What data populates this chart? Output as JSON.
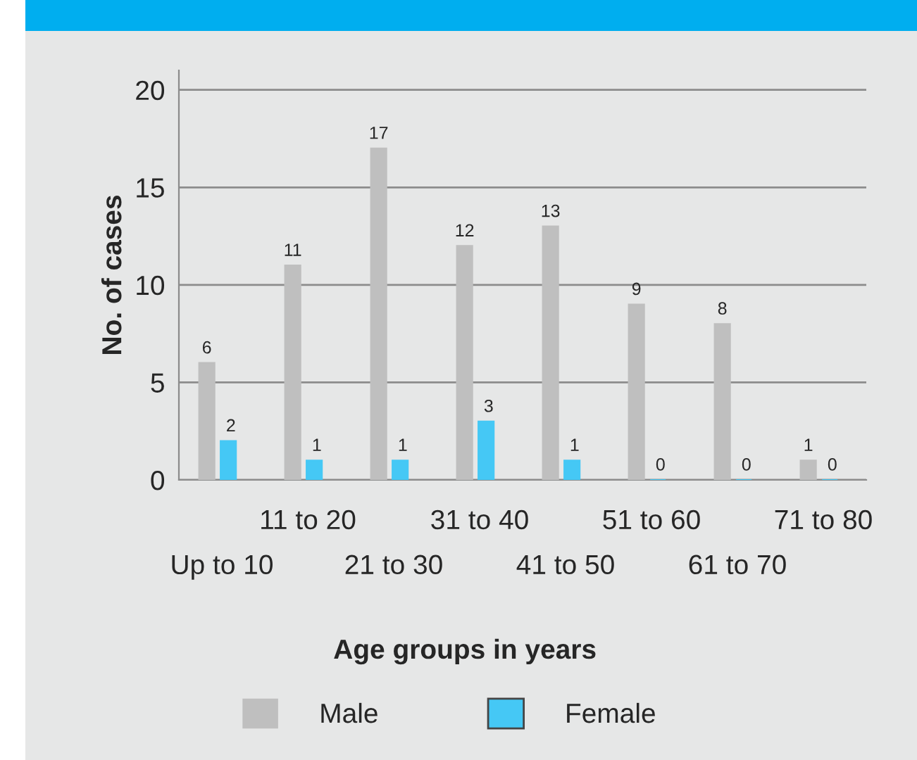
{
  "chart_data": {
    "type": "bar",
    "xlabel": "Age groups in years",
    "ylabel": "No. of cases",
    "categories": [
      "Up to 10",
      "11 to 20",
      "21 to 30",
      "31 to 40",
      "41 to 50",
      "51 to 60",
      "61 to 70",
      "71 to 80"
    ],
    "series": [
      {
        "name": "Male",
        "color": "#bfbfbf",
        "values": [
          6,
          11,
          17,
          12,
          13,
          9,
          8,
          1
        ]
      },
      {
        "name": "Female",
        "color": "#45c8f5",
        "values": [
          2,
          1,
          1,
          3,
          1,
          0,
          0,
          0
        ]
      }
    ],
    "ylim": [
      0,
      21
    ],
    "yticks": [
      0,
      5,
      10,
      15,
      20
    ],
    "grid": "y",
    "legend": "bottom",
    "data_labels": true
  }
}
